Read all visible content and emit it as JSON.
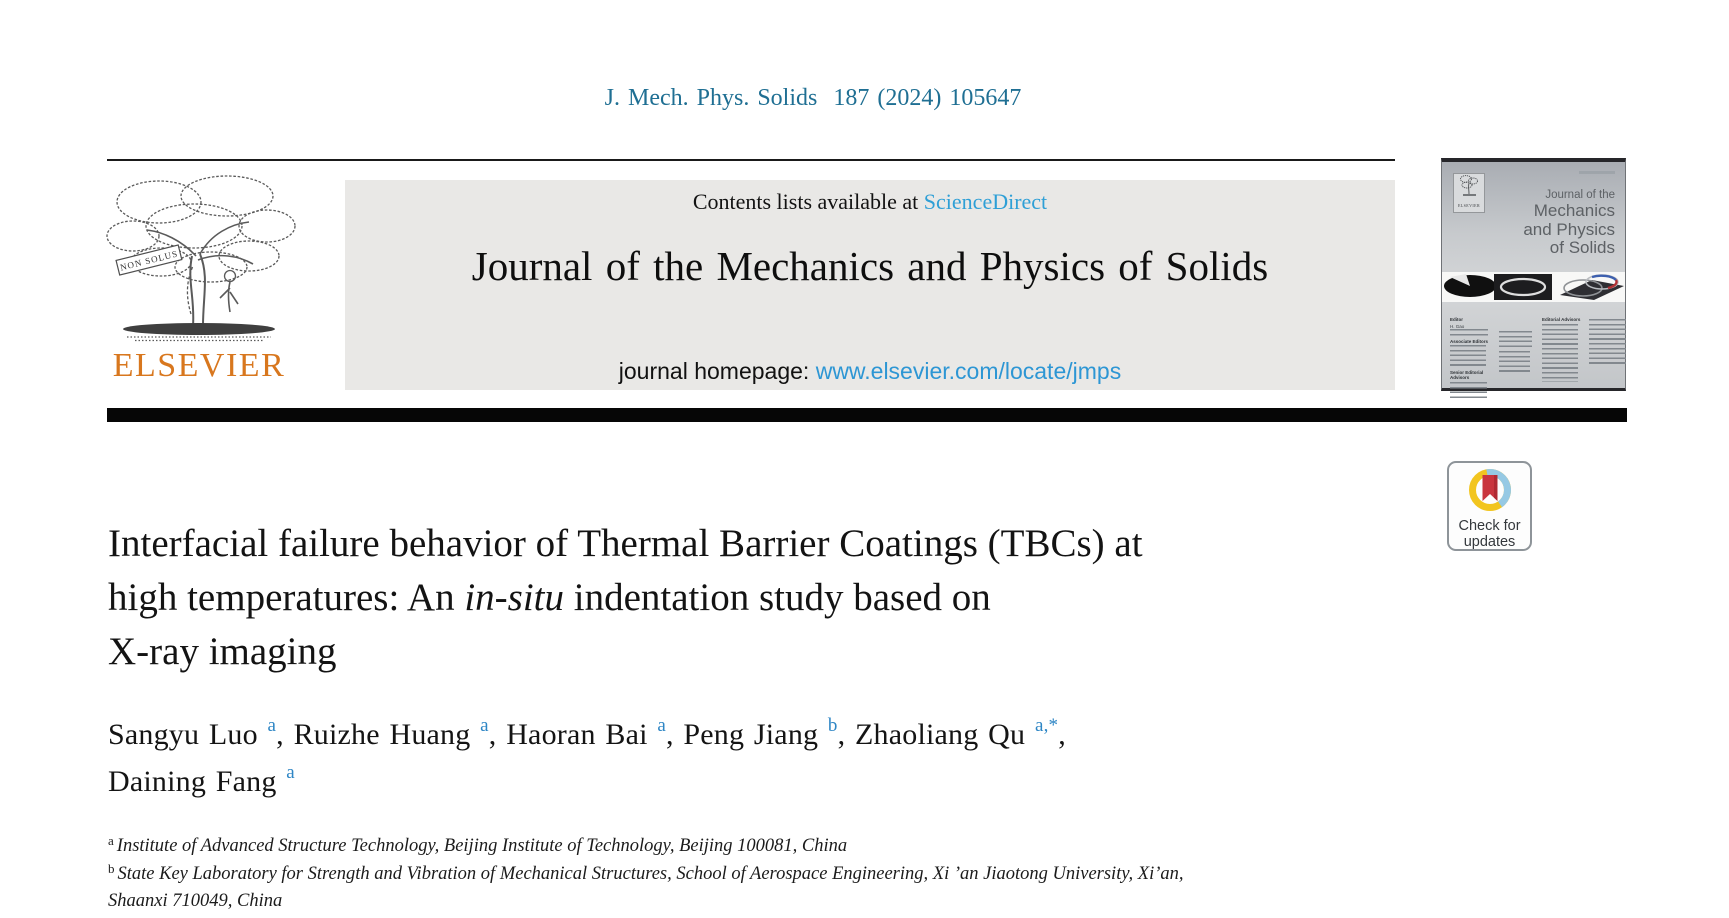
{
  "page": {
    "citation": "J. Mech. Phys. Solids  187 (2024) 105647"
  },
  "colors": {
    "citation_teal": "#1f6f93",
    "sciencedirect_blue": "#2e9fd6",
    "homepage_link_blue": "#2d96d4",
    "elsevier_orange": "#d8771e",
    "author_sup_blue": "#2e86c5",
    "banner_gray": "#e9e8e6",
    "crossmark_yellow": "#f2c51f",
    "crossmark_blue": "#96c9e4",
    "crossmark_red": "#c9353e"
  },
  "header": {
    "contents_prefix": "Contents lists available at ",
    "contents_link": "ScienceDirect",
    "journal_title": "Journal of the Mechanics and Physics of Solids",
    "homepage_prefix": "journal homepage: ",
    "homepage_link": "www.elsevier.com/locate/jmps",
    "logo_text": "ELSEVIER",
    "logo_ribbon": "NON SOLUS"
  },
  "cover": {
    "publisher": "ELSEVIER",
    "title_lines": [
      "Journal of the",
      "Mechanics",
      "and Physics",
      "of Solids"
    ],
    "sections": [
      "Editor",
      "H. Gao",
      "Associate Editors",
      "Senior Editorial Advisors",
      "Editorial Advisors"
    ]
  },
  "badge": {
    "line1": "Check for",
    "line2": "updates"
  },
  "article": {
    "title_lines": [
      [
        {
          "t": "Interfacial failure behavior of Thermal Barrier Coatings (TBCs) at"
        }
      ],
      [
        {
          "t": "high temperatures: An "
        },
        {
          "t": "in-situ",
          "italic": true
        },
        {
          "t": " indentation study based on"
        }
      ],
      [
        {
          "t": "X-ray imaging"
        }
      ]
    ],
    "author_lines": [
      [
        {
          "name": "Sangyu Luo",
          "sup": "a",
          "tail": ", "
        },
        {
          "name": "Ruizhe Huang",
          "sup": "a",
          "tail": ", "
        },
        {
          "name": "Haoran Bai",
          "sup": "a",
          "tail": ", "
        },
        {
          "name": "Peng Jiang",
          "sup": "b",
          "tail": ", "
        },
        {
          "name": "Zhaoliang Qu",
          "sup": "a,*",
          "tail": ","
        }
      ],
      [
        {
          "name": "Daining Fang",
          "sup": "a",
          "tail": ""
        }
      ]
    ],
    "affiliations": [
      {
        "sup": "a",
        "lines": [
          "Institute of Advanced Structure Technology, Beijing Institute of Technology, Beijing 100081, China"
        ]
      },
      {
        "sup": "b",
        "lines": [
          "State Key Laboratory for Strength and Vibration of Mechanical Structures, School of Aerospace Engineering, Xi ’an Jiaotong University, Xi’an,",
          "Shaanxi 710049, China"
        ]
      }
    ]
  }
}
